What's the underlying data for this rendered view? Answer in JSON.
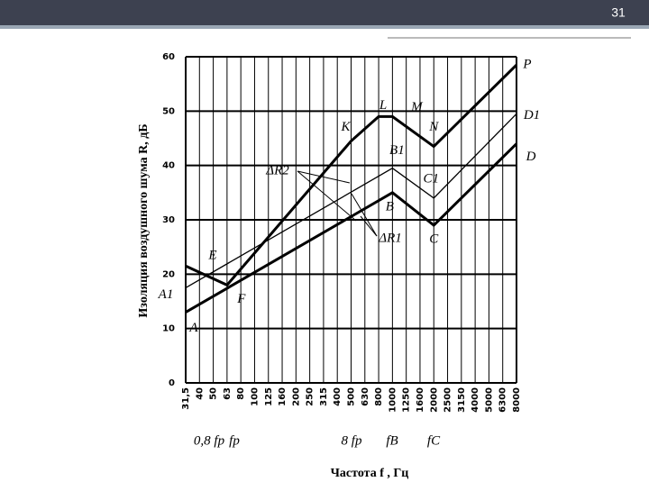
{
  "page_number": "31",
  "chart_data": {
    "type": "line",
    "ylabel": "Изоляция воздушного шума R, дБ",
    "xlabel": "Частота f , Гц",
    "categories": [
      "31,5",
      "40",
      "50",
      "63",
      "80",
      "100",
      "125",
      "160",
      "200",
      "250",
      "315",
      "400",
      "500",
      "630",
      "800",
      "1000",
      "1250",
      "1600",
      "2000",
      "2500",
      "3150",
      "4000",
      "5000",
      "6300",
      "8000"
    ],
    "ylim": [
      0,
      60
    ],
    "yticks": [
      0,
      10,
      20,
      30,
      40,
      50,
      60
    ],
    "grid": true,
    "series": [
      {
        "color": "#000000",
        "x": [
          "31,5",
          "1000",
          "2000",
          "8000"
        ],
        "values": [
          13,
          35,
          29,
          44
        ],
        "point_labels": [
          "A",
          "B",
          "C",
          "D"
        ]
      },
      {
        "color": "#000000",
        "x": [
          "31,5",
          "1000",
          "2000",
          "8000"
        ],
        "values": [
          17.5,
          39.5,
          34,
          49.5
        ],
        "point_labels": [
          "A1",
          "B1",
          "C1",
          "D1"
        ]
      },
      {
        "color": "#000000",
        "x": [
          "31,5",
          "63",
          "500",
          "800",
          "1000",
          "2000",
          "8000"
        ],
        "values": [
          21.5,
          18,
          44.5,
          49,
          49,
          43.5,
          58.5
        ],
        "point_labels": [
          "E",
          "F",
          "K",
          "L",
          "M",
          "N",
          "P"
        ]
      }
    ],
    "annotations": [
      "ΔR2",
      "ΔR1",
      "0,8 fр",
      "fр",
      "8 fр",
      "fB",
      "fC"
    ]
  }
}
